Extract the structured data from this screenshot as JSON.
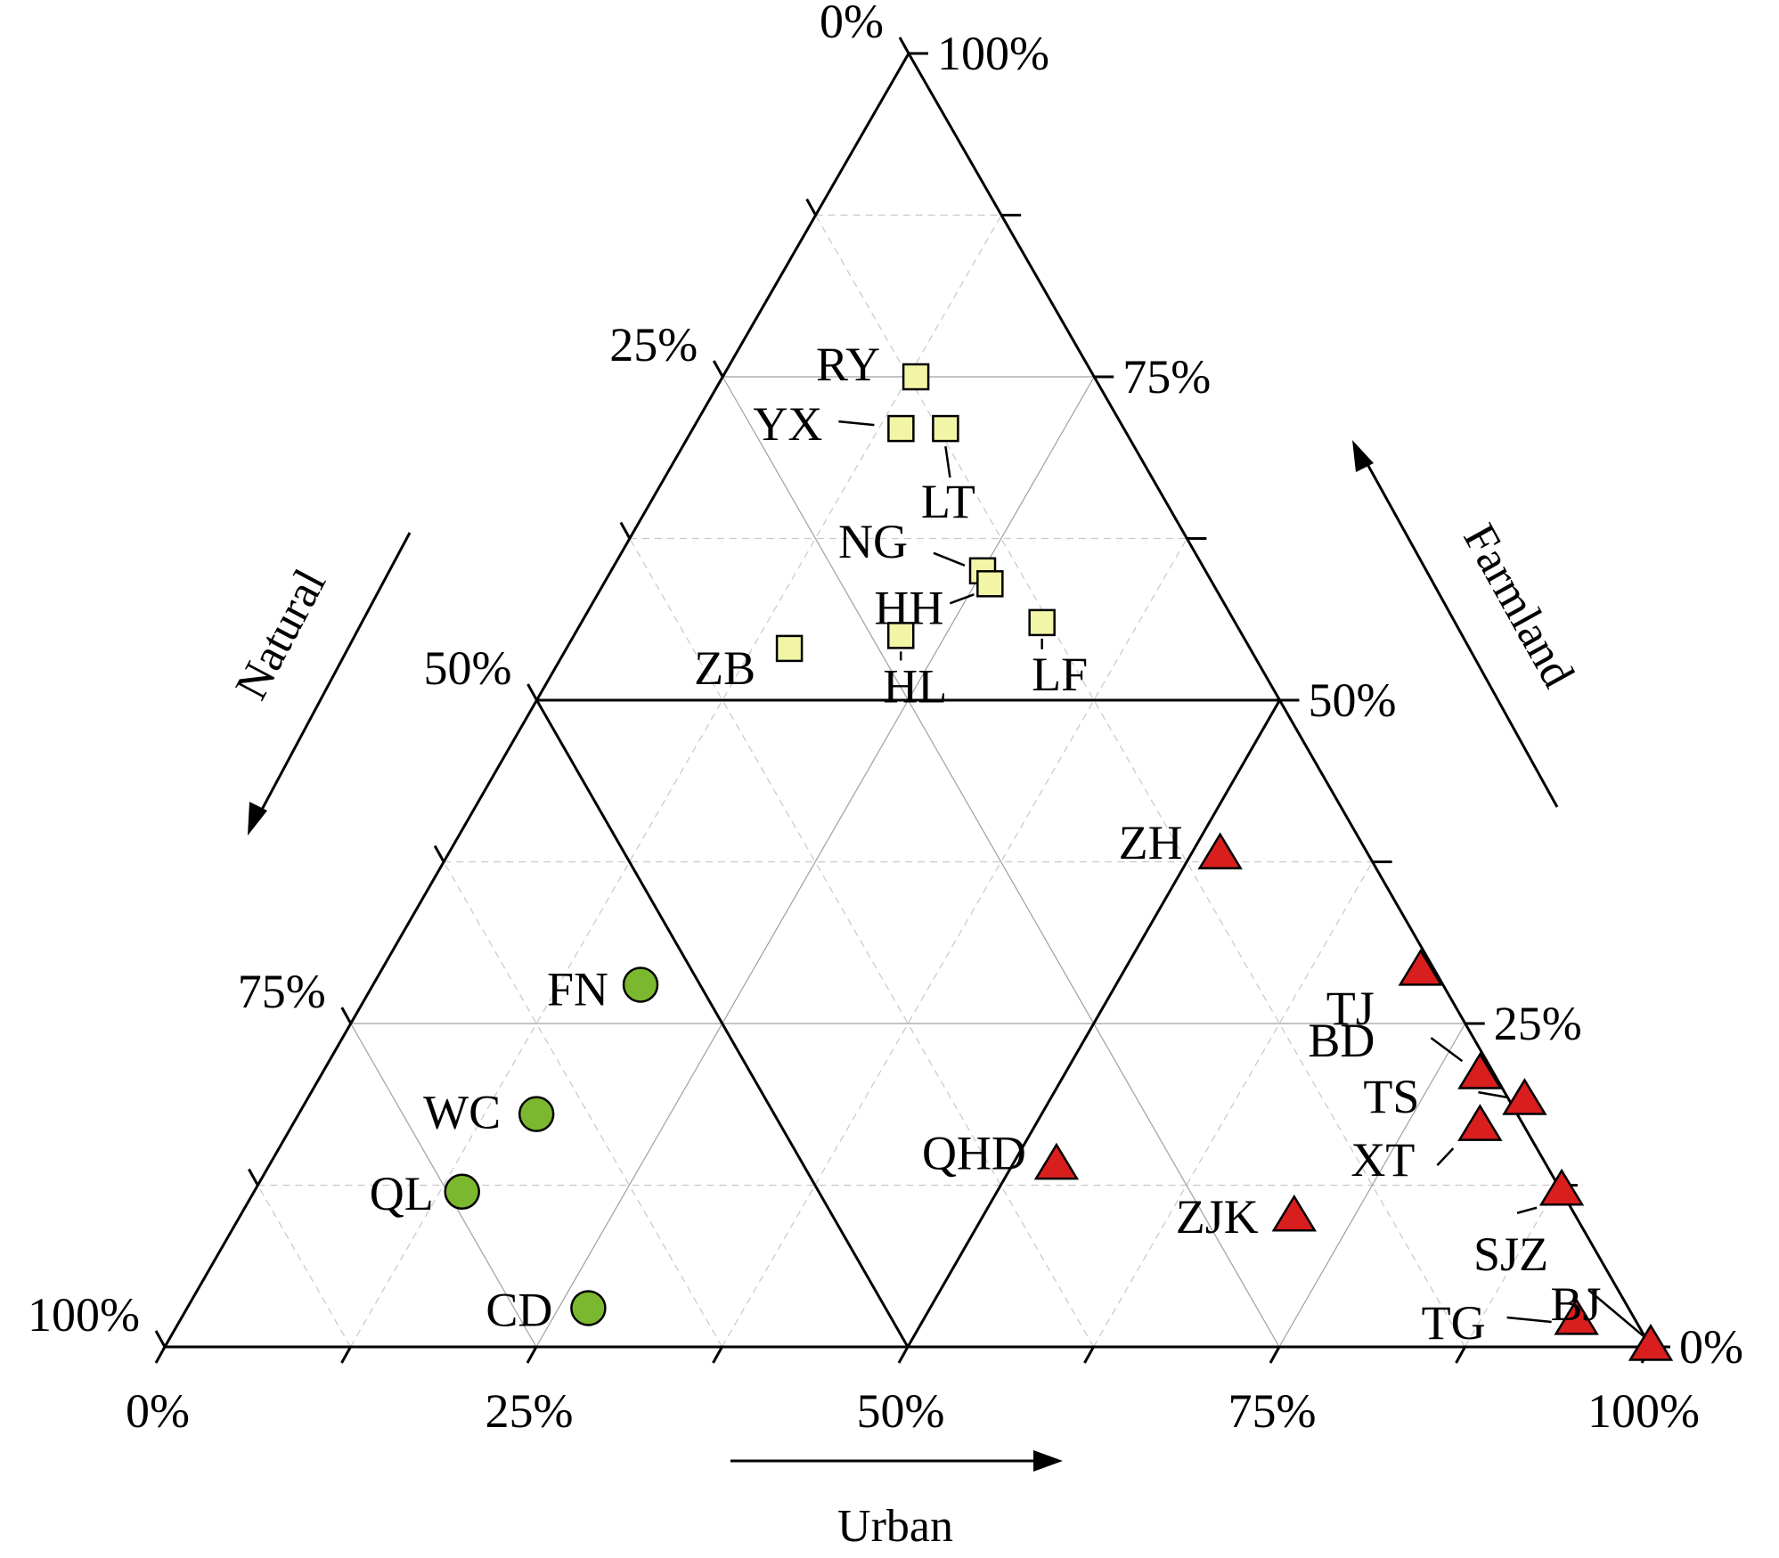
{
  "chart_data": {
    "type": "scatter",
    "subtype": "ternary",
    "axes": {
      "urban": {
        "label": "Urban",
        "ticks": [
          "0%",
          "25%",
          "50%",
          "75%",
          "100%"
        ]
      },
      "farmland": {
        "label": "Farmland",
        "ticks": [
          "0%",
          "25%",
          "50%",
          "75%",
          "100%"
        ]
      },
      "natural": {
        "label": "Natural",
        "ticks": [
          "0%",
          "25%",
          "50%",
          "75%",
          "100%"
        ]
      }
    },
    "grid": true,
    "groups": [
      {
        "marker": "square",
        "color": "#f3f5a6",
        "points": [
          {
            "label": "RY",
            "urban": 0.13,
            "farmland": 0.75,
            "natural": 0.12
          },
          {
            "label": "YX",
            "urban": 0.14,
            "farmland": 0.71,
            "natural": 0.15
          },
          {
            "label": "LT",
            "urban": 0.17,
            "farmland": 0.71,
            "natural": 0.12
          },
          {
            "label": "NG",
            "urban": 0.25,
            "farmland": 0.6,
            "natural": 0.15
          },
          {
            "label": "HH",
            "urban": 0.26,
            "farmland": 0.59,
            "natural": 0.15
          },
          {
            "label": "LF",
            "urban": 0.31,
            "farmland": 0.56,
            "natural": 0.13
          },
          {
            "label": "HL",
            "urban": 0.22,
            "farmland": 0.55,
            "natural": 0.23
          },
          {
            "label": "ZB",
            "urban": 0.15,
            "farmland": 0.54,
            "natural": 0.31
          }
        ]
      },
      {
        "marker": "triangle",
        "color": "#d91e1e",
        "points": [
          {
            "label": "ZH",
            "urban": 0.52,
            "farmland": 0.38,
            "natural": 0.1
          },
          {
            "label": "TJ",
            "urban": 0.7,
            "farmland": 0.29,
            "natural": 0.01
          },
          {
            "label": "BD",
            "urban": 0.78,
            "farmland": 0.21,
            "natural": 0.01
          },
          {
            "label": "TS",
            "urban": 0.82,
            "farmland": 0.19,
            "natural": 0.0
          },
          {
            "label": "XT",
            "urban": 0.8,
            "farmland": 0.17,
            "natural": 0.03
          },
          {
            "label": "SJZ",
            "urban": 0.88,
            "farmland": 0.12,
            "natural": 0.0
          },
          {
            "label": "BJ",
            "urban": 1.0,
            "farmland": 0.0,
            "natural": 0.0
          },
          {
            "label": "TG",
            "urban": 0.94,
            "farmland": 0.02,
            "natural": 0.04
          },
          {
            "label": "QHD",
            "urban": 0.53,
            "farmland": 0.14,
            "natural": 0.33
          },
          {
            "label": "ZJK",
            "urban": 0.71,
            "farmland": 0.1,
            "natural": 0.19
          }
        ]
      },
      {
        "marker": "circle",
        "color": "#7cb82f",
        "points": [
          {
            "label": "FN",
            "urban": 0.18,
            "farmland": 0.28,
            "natural": 0.54
          },
          {
            "label": "WC",
            "urban": 0.16,
            "farmland": 0.18,
            "natural": 0.66
          },
          {
            "label": "QL",
            "urban": 0.14,
            "farmland": 0.12,
            "natural": 0.74
          },
          {
            "label": "CD",
            "urban": 0.27,
            "farmland": 0.03,
            "natural": 0.7
          }
        ]
      }
    ]
  }
}
